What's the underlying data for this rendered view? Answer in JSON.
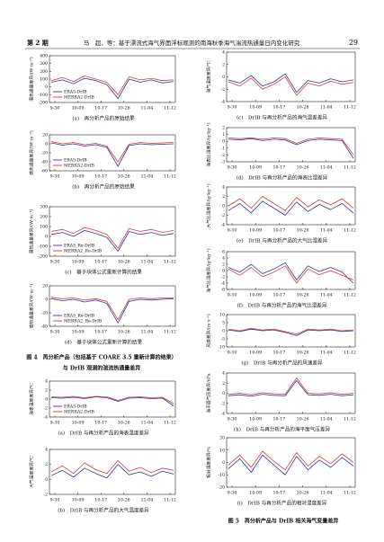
{
  "header": {
    "issue": "第 2 期",
    "running_title": "马　超，等：基于漂流式海气界面浮标观测的南海秋季海气湍流热通量日内变化研究",
    "page": "29"
  },
  "figures": [
    {
      "caption": [
        "图 4　再分析产品（包括基于 COARE 3.5 重新计算的结果）",
        "与 DrIB 观测的湍流热通量差异"
      ],
      "panels": [
        {
          "type": "line",
          "ylabel": "潜热通量差异/(W·m⁻²)",
          "caption": "(a)　再分析产品的原始结果",
          "ylim": [
            -200,
            400
          ],
          "yticks": [
            -200,
            -100,
            0,
            100,
            200,
            300,
            400
          ],
          "xticks": [
            "9-30",
            "10-09",
            "10-17",
            "10-26",
            "11-04",
            "11-12"
          ],
          "legend": true,
          "series": [
            {
              "name": "ERA5-DrIB",
              "color": "#2b3a8f",
              "values": [
                60,
                90,
                40,
                110,
                80,
                30,
                -150,
                100,
                60,
                90,
                50,
                70
              ]
            },
            {
              "name": "MERRA2-DrIB",
              "color": "#d23b3b",
              "values": [
                80,
                120,
                70,
                140,
                100,
                60,
                -100,
                130,
                90,
                110,
                80,
                90
              ]
            }
          ]
        },
        {
          "type": "line",
          "ylabel": "感热通量差异/(W·m⁻²)",
          "caption": "(b)　再分析产品的原始结果",
          "ylim": [
            -60,
            20
          ],
          "yticks": [
            -60,
            -40,
            -20,
            0,
            20
          ],
          "xticks": [
            "9-30",
            "10-09",
            "10-17",
            "10-26",
            "11-04",
            "11-12"
          ],
          "legend": true,
          "series": [
            {
              "name": "ERA5-DrIB",
              "color": "#2b3a8f",
              "values": [
                2,
                -3,
                0,
                -5,
                -2,
                -8,
                -50,
                -4,
                0,
                -2,
                -1,
                0
              ]
            },
            {
              "name": "MERRA2-DrIB",
              "color": "#d23b3b",
              "values": [
                5,
                0,
                3,
                -2,
                1,
                -5,
                -40,
                -1,
                3,
                1,
                2,
                3
              ]
            }
          ]
        },
        {
          "type": "line",
          "ylabel": "潜热通量差异/(W·m⁻²)",
          "caption": "(c)　基于块体公式重新计算的结果",
          "ylim": [
            -200,
            300
          ],
          "yticks": [
            -200,
            -100,
            0,
            100,
            200,
            300
          ],
          "xticks": [
            "9-30",
            "10-09",
            "10-17",
            "10-26",
            "11-04",
            "11-12"
          ],
          "legend": true,
          "series": [
            {
              "name": "ERA5_Re-DrIB",
              "color": "#2b3a8f",
              "values": [
                20,
                40,
                0,
                60,
                30,
                -10,
                -150,
                50,
                20,
                40,
                10,
                30
              ]
            },
            {
              "name": "MERRA2_Re-DrIB",
              "color": "#d23b3b",
              "values": [
                50,
                70,
                30,
                90,
                60,
                20,
                -120,
                80,
                50,
                70,
                40,
                60
              ]
            }
          ]
        },
        {
          "type": "line",
          "ylabel": "感热通量差异/(W·m⁻²)",
          "caption": "(d)　基于块体公式重新计算的结果",
          "ylim": [
            -40,
            20
          ],
          "yticks": [
            -40,
            -20,
            0,
            20
          ],
          "xticks": [
            "9-30",
            "10-09",
            "10-17",
            "10-26",
            "11-04",
            "11-12"
          ],
          "legend": true,
          "series": [
            {
              "name": "ERA5_Re-DrIB",
              "color": "#2b3a8f",
              "values": [
                1,
                -2,
                0,
                -4,
                -1,
                -6,
                -35,
                -3,
                0,
                -1,
                0,
                1
              ]
            },
            {
              "name": "MERRA2_Re-DrIB",
              "color": "#d23b3b",
              "values": [
                3,
                1,
                2,
                -1,
                1,
                -3,
                -30,
                0,
                2,
                1,
                2,
                2
              ]
            }
          ]
        }
      ]
    },
    {
      "caption": [
        "图 5　再分析产品与 DrIB 相关海气变量差异"
      ],
      "panels": [
        {
          "type": "line",
          "ylabel": "海表温度差异/℃",
          "caption": "(a)　DrIB 与再分析产品的海表温度差异",
          "ylim": [
            -4,
            4
          ],
          "yticks": [
            -4,
            -2,
            0,
            2,
            4
          ],
          "xticks": [
            "9-30",
            "10-09",
            "10-17",
            "10-26",
            "11-04",
            "11-12"
          ],
          "legend": true,
          "series": [
            {
              "name": "ERA5-DrIB",
              "color": "#2b3a8f",
              "values": [
                0.3,
                0.2,
                0.4,
                0.1,
                0.5,
                0.3,
                -0.5,
                0.2,
                0.3,
                0.1,
                0.2,
                -1.5
              ]
            },
            {
              "name": "MERRA2-DrIB",
              "color": "#d23b3b",
              "values": [
                0.5,
                0.4,
                0.6,
                0.3,
                0.6,
                0.5,
                -0.3,
                0.4,
                0.5,
                0.3,
                0.4,
                -1.0
              ]
            }
          ]
        },
        {
          "type": "line",
          "ylabel": "大气温度差异/℃",
          "caption": "(b)　DrIB 与再分析产品的大气温度差异",
          "ylim": [
            -2,
            4
          ],
          "yticks": [
            -2,
            0,
            2,
            4
          ],
          "xticks": [
            "9-30",
            "10-09",
            "10-17",
            "10-26",
            "11-04",
            "11-12"
          ],
          "legend": false,
          "series": [
            {
              "color": "#2b3a8f",
              "values": [
                0.5,
                1.2,
                0.3,
                1.5,
                0.8,
                0.2,
                2.0,
                0.6,
                1.0,
                0.4,
                1.1,
                0.7
              ]
            },
            {
              "color": "#d23b3b",
              "values": [
                1.0,
                1.8,
                0.8,
                2.2,
                1.3,
                0.8,
                2.5,
                1.1,
                1.6,
                0.9,
                1.5,
                1.2
              ]
            }
          ]
        },
        {
          "type": "line",
          "ylabel": "海气温度差异/℃",
          "caption": "(c)　DrIB 与再分析产品的海气温差差异",
          "ylim": [
            -4,
            4
          ],
          "yticks": [
            -4,
            -2,
            0,
            2,
            4
          ],
          "xticks": [
            "9-30",
            "10-09",
            "10-17",
            "10-26",
            "11-04",
            "11-12"
          ],
          "legend": false,
          "series": [
            {
              "color": "#2b3a8f",
              "values": [
                -0.5,
                -1.0,
                0.2,
                -1.5,
                -0.8,
                0.5,
                -2.5,
                -0.6,
                -1.0,
                -0.3,
                -0.8,
                -0.5
              ]
            },
            {
              "color": "#d23b3b",
              "values": [
                -0.8,
                -1.5,
                -0.2,
                -2.0,
                -1.2,
                0,
                -3.0,
                -1.0,
                -1.5,
                -0.7,
                -1.2,
                -0.9
              ]
            }
          ]
        },
        {
          "type": "line",
          "ylabel": "海表比湿差异/(g·kg⁻¹)",
          "caption": "(d)　DrIB 与再分析产品的海表比湿差异",
          "ylim": [
            -3,
            2
          ],
          "yticks": [
            -3,
            -2,
            -1,
            0,
            1,
            2
          ],
          "xticks": [
            "9-30",
            "10-09",
            "10-17",
            "10-26",
            "11-04",
            "11-12"
          ],
          "legend": false,
          "series": [
            {
              "color": "#2b3a8f",
              "values": [
                0.3,
                0.2,
                0.4,
                0.1,
                0.3,
                0.2,
                -0.5,
                0.1,
                0.3,
                0.2,
                0.1,
                -2.5
              ]
            },
            {
              "color": "#d23b3b",
              "values": [
                0.5,
                0.4,
                0.5,
                0.3,
                0.5,
                0.4,
                -0.3,
                0.3,
                0.5,
                0.4,
                0.3,
                -2.0
              ]
            }
          ]
        },
        {
          "type": "line",
          "ylabel": "大气比湿差异/(g·kg⁻¹)",
          "caption": "(e)　DrIB 与再分析产品的大气比湿差异",
          "ylim": [
            -4,
            4
          ],
          "yticks": [
            -4,
            -2,
            0,
            2,
            4
          ],
          "xticks": [
            "9-30",
            "10-09",
            "10-17",
            "10-26",
            "11-04",
            "11-12"
          ],
          "legend": false,
          "series": [
            {
              "color": "#2b3a8f",
              "values": [
                -1.0,
                0.5,
                -1.5,
                1.0,
                -0.5,
                -2.0,
                0.8,
                -1.2,
                0.3,
                -0.8,
                0.5,
                -1.5
              ]
            },
            {
              "color": "#d23b3b",
              "values": [
                0,
                1.5,
                -0.5,
                2.0,
                0.5,
                -1.0,
                1.8,
                -0.2,
                1.3,
                0.2,
                1.5,
                -0.5
              ]
            }
          ]
        },
        {
          "type": "line",
          "ylabel": "海气比湿差异/(g·kg⁻¹)",
          "caption": "(f)　DrIB 与再分析产品的海气比湿差异",
          "ylim": [
            -6,
            6
          ],
          "yticks": [
            -6,
            -4,
            -2,
            0,
            2,
            4,
            6
          ],
          "xticks": [
            "9-30",
            "10-09",
            "10-17",
            "10-26",
            "11-04",
            "11-12"
          ],
          "legend": false,
          "series": [
            {
              "color": "#2b3a8f",
              "values": [
                1,
                -0.5,
                2,
                -1,
                0.5,
                2.5,
                -3,
                1.5,
                -0.3,
                1,
                -0.5,
                -4
              ]
            },
            {
              "color": "#d23b3b",
              "values": [
                0.5,
                -1.5,
                1,
                -2,
                -0.5,
                1.5,
                -4,
                0.5,
                -1.3,
                0,
                -1.5,
                -3
              ]
            }
          ]
        },
        {
          "type": "line",
          "ylabel": "风速差异/(m·s⁻¹)",
          "caption": "(g)　DrIB 与再分析产品的风速差异",
          "ylim": [
            -10,
            10
          ],
          "yticks": [
            -10,
            -5,
            0,
            5,
            10
          ],
          "xticks": [
            "9-30",
            "10-09",
            "10-17",
            "10-26",
            "11-04",
            "11-12"
          ],
          "legend": false,
          "series": [
            {
              "color": "#2b3a8f",
              "values": [
                0.5,
                -0.5,
                1,
                0,
                0.5,
                -1,
                -3,
                0.5,
                0,
                0.5,
                -0.5,
                0
              ]
            },
            {
              "color": "#d23b3b",
              "values": [
                1,
                0,
                1.5,
                0.5,
                1,
                -0.5,
                -2,
                1,
                0.5,
                1,
                0,
                0.5
              ]
            }
          ]
        },
        {
          "type": "line",
          "ylabel": "海平面气压差异/hPa",
          "caption": "(h)　DrIB 与再分析产品的海平面气压差异",
          "ylim": [
            -4,
            4
          ],
          "yticks": [
            -4,
            -2,
            0,
            2,
            4
          ],
          "xticks": [
            "9-30",
            "10-09",
            "10-17",
            "10-26",
            "11-04",
            "11-12"
          ],
          "legend": false,
          "series": [
            {
              "color": "#2b3a8f",
              "values": [
                -0.5,
                -0.3,
                -0.6,
                -0.2,
                -0.4,
                -0.5,
                2.5,
                -0.3,
                -0.4,
                -0.2,
                -0.5,
                -0.3
              ]
            },
            {
              "color": "#d23b3b",
              "values": [
                -0.2,
                0,
                -0.3,
                0.1,
                -0.1,
                -0.2,
                3.0,
                0,
                -0.1,
                0.1,
                -0.2,
                0
              ]
            }
          ]
        },
        {
          "type": "line",
          "ylabel": "相对湿度差异/%",
          "caption": "(i)　DrIB 与再分析产品的相对湿度差异",
          "ylim": [
            -20,
            20
          ],
          "yticks": [
            -20,
            -10,
            0,
            10,
            20
          ],
          "xticks": [
            "9-30",
            "10-09",
            "10-17",
            "10-26",
            "11-04",
            "11-12"
          ],
          "legend": false,
          "series": [
            {
              "color": "#2b3a8f",
              "values": [
                -5,
                3,
                -8,
                6,
                -2,
                -10,
                5,
                -6,
                2,
                -4,
                4,
                -3
              ]
            },
            {
              "color": "#d23b3b",
              "values": [
                -2,
                6,
                -4,
                9,
                1,
                -6,
                8,
                -3,
                5,
                -1,
                7,
                0
              ]
            }
          ]
        }
      ]
    }
  ]
}
